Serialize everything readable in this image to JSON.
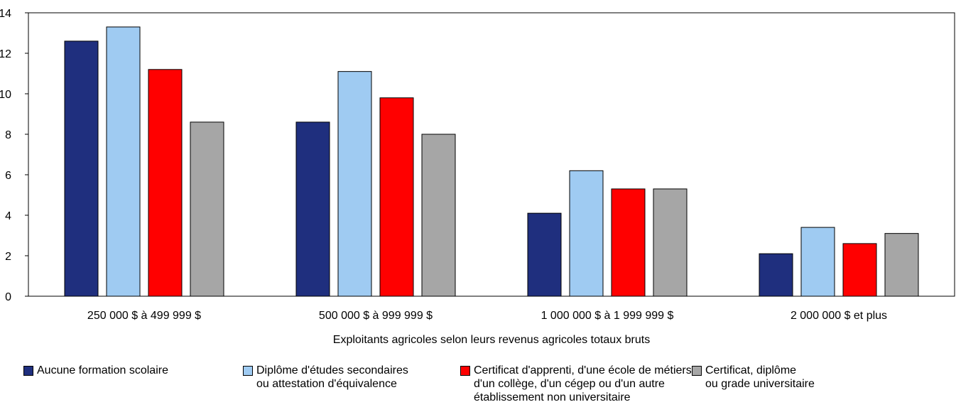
{
  "chart_data": {
    "type": "bar",
    "categories": [
      "250 000 $ à 499 999 $",
      "500 000 $ à 999 999 $",
      "1 000 000 $ à 1 999 999 $",
      "2 000 000 $ et plus"
    ],
    "series": [
      {
        "name": "Aucune formation scolaire",
        "color": "#1f2f7e",
        "values": [
          12.6,
          8.6,
          4.1,
          2.1
        ]
      },
      {
        "name": "Diplôme d'études secondaires\nou attestation d'équivalence",
        "color": "#9fcbf2",
        "values": [
          13.3,
          11.1,
          6.2,
          3.4
        ]
      },
      {
        "name": "Certificat d'apprenti, d'une école de métiers,\nd'un collège, d'un cégep ou d'un autre\nétablissement non universitaire",
        "color": "#ff0000",
        "values": [
          11.2,
          9.8,
          5.3,
          2.6
        ]
      },
      {
        "name": "Certificat, diplôme\nou grade universitaire",
        "color": "#a6a6a6",
        "values": [
          8.6,
          8.0,
          5.3,
          3.1
        ]
      }
    ],
    "title": "",
    "xlabel": "Exploitants agricoles selon leurs revenus agricoles totaux bruts",
    "ylabel": "",
    "ylim": [
      0,
      14
    ],
    "yticks": [
      "0",
      "2",
      "4",
      "6",
      "8",
      "10",
      "12",
      "14"
    ],
    "grid": false,
    "legend_position": "bottom"
  }
}
